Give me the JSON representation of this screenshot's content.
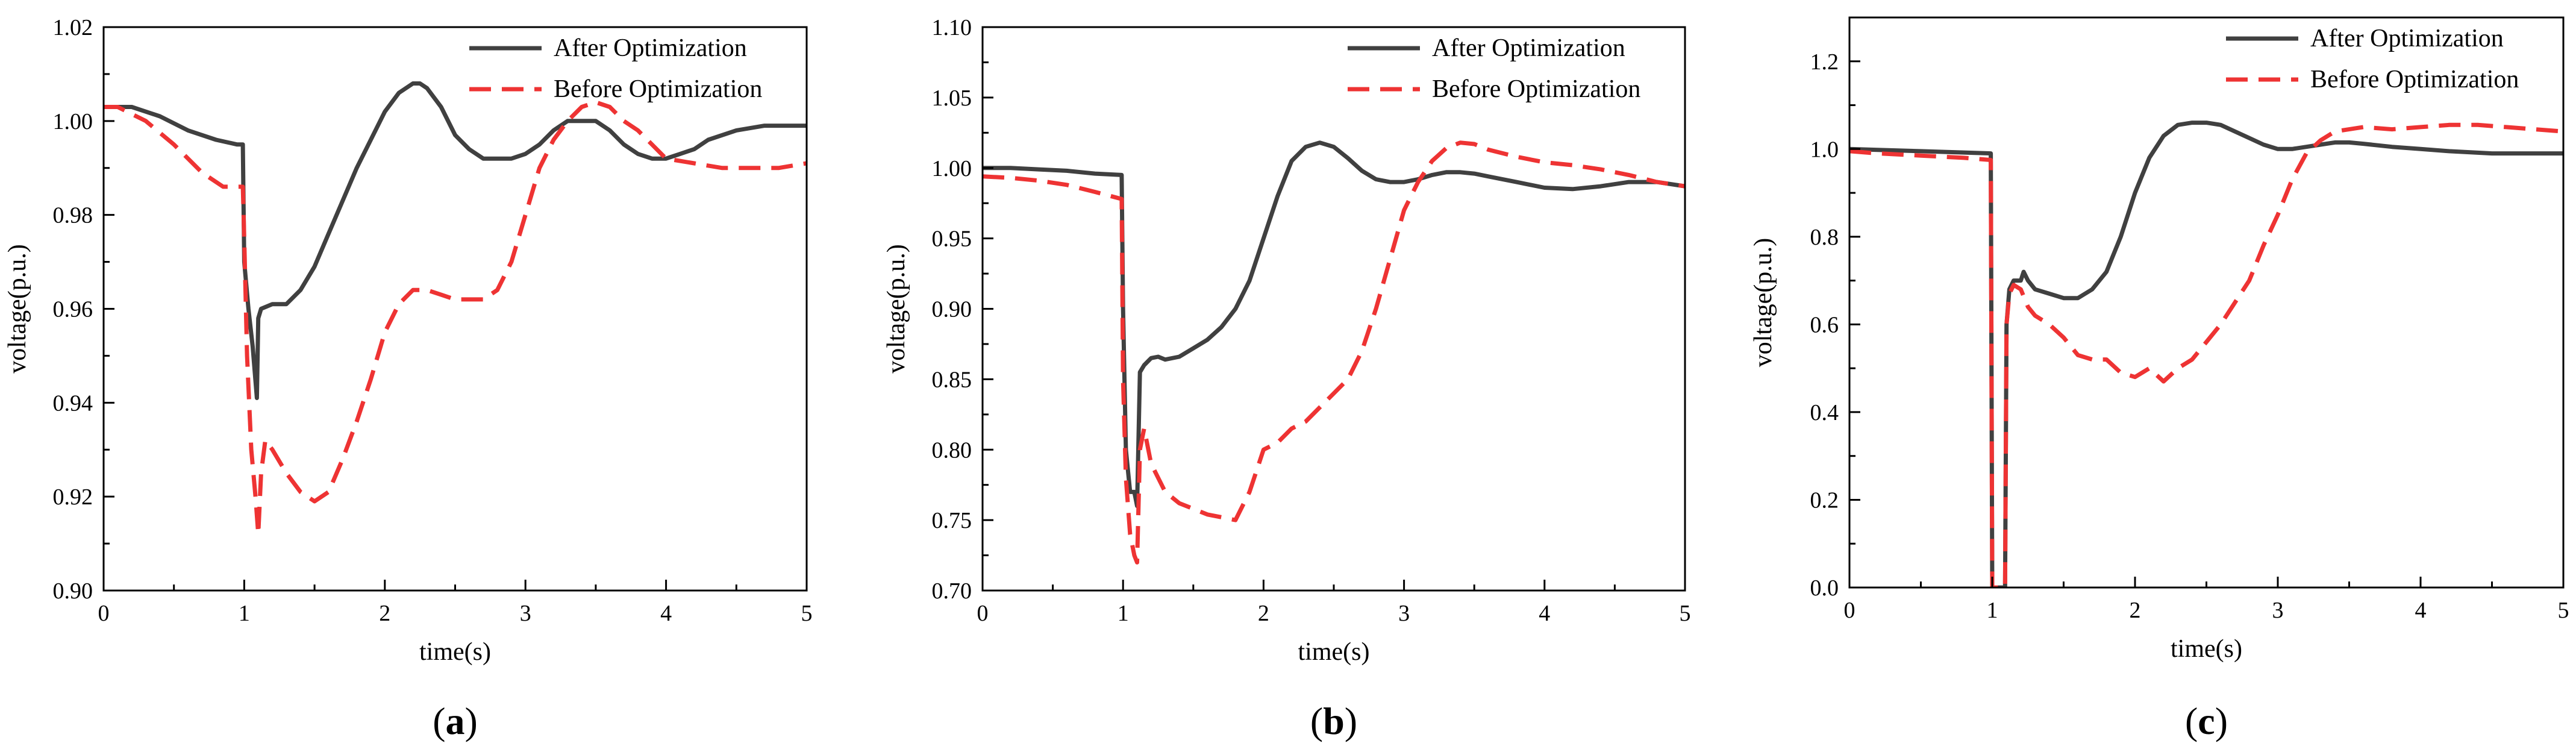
{
  "colors": {
    "after": "#404040",
    "before": "#ee3333",
    "axis": "#000000"
  },
  "chart_data": [
    {
      "type": "line",
      "panel_label": "a",
      "xlabel": "time(s)",
      "ylabel": "voltage(p.u.)",
      "xlim": [
        0,
        5
      ],
      "ylim": [
        0.9,
        1.02
      ],
      "xticks": [
        0,
        1,
        2,
        3,
        4,
        5
      ],
      "xtick_labels": [
        "0",
        "1",
        "2",
        "3",
        "4",
        "5"
      ],
      "yticks": [
        0.9,
        0.92,
        0.94,
        0.96,
        0.98,
        1.0,
        1.02
      ],
      "ytick_labels": [
        "0.90",
        "0.92",
        "0.94",
        "0.96",
        "0.98",
        "1.00",
        "1.02"
      ],
      "grid": false,
      "legend_position": "top-right",
      "series": [
        {
          "name": "After Optimization",
          "style": "solid",
          "x": [
            0,
            0.2,
            0.4,
            0.6,
            0.8,
            0.95,
            0.99,
            1.0,
            1.03,
            1.06,
            1.09,
            1.1,
            1.12,
            1.2,
            1.3,
            1.4,
            1.5,
            1.6,
            1.8,
            2.0,
            2.1,
            2.2,
            2.25,
            2.3,
            2.4,
            2.5,
            2.6,
            2.7,
            2.8,
            2.9,
            3.0,
            3.1,
            3.2,
            3.3,
            3.4,
            3.5,
            3.6,
            3.7,
            3.8,
            3.9,
            4.0,
            4.1,
            4.2,
            4.3,
            4.5,
            4.7,
            4.85,
            5.0
          ],
          "y": [
            1.003,
            1.003,
            1.001,
            0.998,
            0.996,
            0.995,
            0.995,
            0.97,
            0.96,
            0.952,
            0.941,
            0.958,
            0.96,
            0.961,
            0.961,
            0.964,
            0.969,
            0.976,
            0.99,
            1.002,
            1.006,
            1.008,
            1.008,
            1.007,
            1.003,
            0.997,
            0.994,
            0.992,
            0.992,
            0.992,
            0.993,
            0.995,
            0.998,
            1.0,
            1.0,
            1.0,
            0.998,
            0.995,
            0.993,
            0.992,
            0.992,
            0.993,
            0.994,
            0.996,
            0.998,
            0.999,
            0.999,
            0.999
          ]
        },
        {
          "name": "Before Optimization",
          "style": "dashed",
          "x": [
            0,
            0.1,
            0.3,
            0.5,
            0.7,
            0.85,
            0.99,
            1.0,
            1.02,
            1.05,
            1.08,
            1.1,
            1.12,
            1.15,
            1.2,
            1.3,
            1.4,
            1.5,
            1.6,
            1.7,
            1.8,
            1.9,
            2.0,
            2.1,
            2.2,
            2.3,
            2.4,
            2.5,
            2.6,
            2.7,
            2.8,
            2.9,
            3.0,
            3.1,
            3.2,
            3.3,
            3.4,
            3.5,
            3.6,
            3.7,
            3.8,
            3.9,
            4.0,
            4.2,
            4.4,
            4.6,
            4.8,
            5.0
          ],
          "y": [
            1.003,
            1.003,
            1.0,
            0.995,
            0.989,
            0.986,
            0.986,
            0.975,
            0.95,
            0.93,
            0.92,
            0.912,
            0.925,
            0.932,
            0.93,
            0.925,
            0.921,
            0.919,
            0.921,
            0.928,
            0.936,
            0.945,
            0.955,
            0.961,
            0.964,
            0.964,
            0.963,
            0.962,
            0.962,
            0.962,
            0.964,
            0.97,
            0.98,
            0.99,
            0.996,
            1.0,
            1.003,
            1.004,
            1.003,
            1.0,
            0.998,
            0.995,
            0.992,
            0.991,
            0.99,
            0.99,
            0.99,
            0.991
          ]
        }
      ]
    },
    {
      "type": "line",
      "panel_label": "b",
      "xlabel": "time(s)",
      "ylabel": "voltage(p.u.)",
      "xlim": [
        0,
        5
      ],
      "ylim": [
        0.7,
        1.1
      ],
      "xticks": [
        0,
        1,
        2,
        3,
        4,
        5
      ],
      "xtick_labels": [
        "0",
        "1",
        "2",
        "3",
        "4",
        "5"
      ],
      "yticks": [
        0.7,
        0.75,
        0.8,
        0.85,
        0.9,
        0.95,
        1.0,
        1.05,
        1.1
      ],
      "ytick_labels": [
        "0.70",
        "0.75",
        "0.80",
        "0.85",
        "0.90",
        "0.95",
        "1.00",
        "1.05",
        "1.10"
      ],
      "grid": false,
      "legend_position": "top-right",
      "series": [
        {
          "name": "After Optimization",
          "style": "solid",
          "x": [
            0,
            0.2,
            0.4,
            0.6,
            0.8,
            0.99,
            1.0,
            1.02,
            1.05,
            1.08,
            1.1,
            1.12,
            1.15,
            1.2,
            1.25,
            1.3,
            1.4,
            1.5,
            1.6,
            1.7,
            1.8,
            1.9,
            2.0,
            2.1,
            2.2,
            2.3,
            2.4,
            2.5,
            2.6,
            2.7,
            2.8,
            2.9,
            3.0,
            3.1,
            3.2,
            3.3,
            3.4,
            3.5,
            3.6,
            3.8,
            4.0,
            4.2,
            4.4,
            4.6,
            4.8,
            5.0
          ],
          "y": [
            1.0,
            1.0,
            0.999,
            0.998,
            0.996,
            0.995,
            0.9,
            0.8,
            0.77,
            0.77,
            0.76,
            0.855,
            0.86,
            0.865,
            0.866,
            0.864,
            0.866,
            0.872,
            0.878,
            0.887,
            0.9,
            0.92,
            0.95,
            0.98,
            1.005,
            1.015,
            1.018,
            1.015,
            1.007,
            0.998,
            0.992,
            0.99,
            0.99,
            0.992,
            0.995,
            0.997,
            0.997,
            0.996,
            0.994,
            0.99,
            0.986,
            0.985,
            0.987,
            0.99,
            0.99,
            0.987
          ]
        },
        {
          "name": "Before Optimization",
          "style": "dashed",
          "x": [
            0,
            0.2,
            0.4,
            0.6,
            0.8,
            0.99,
            1.0,
            1.02,
            1.05,
            1.08,
            1.1,
            1.12,
            1.15,
            1.2,
            1.3,
            1.4,
            1.5,
            1.6,
            1.7,
            1.8,
            1.9,
            2.0,
            2.1,
            2.2,
            2.3,
            2.4,
            2.5,
            2.6,
            2.7,
            2.8,
            2.9,
            3.0,
            3.1,
            3.2,
            3.3,
            3.4,
            3.5,
            3.6,
            3.8,
            4.0,
            4.2,
            4.4,
            4.6,
            4.8,
            5.0
          ],
          "y": [
            0.994,
            0.993,
            0.991,
            0.988,
            0.983,
            0.978,
            0.85,
            0.78,
            0.74,
            0.725,
            0.72,
            0.8,
            0.815,
            0.79,
            0.77,
            0.762,
            0.758,
            0.754,
            0.752,
            0.75,
            0.77,
            0.8,
            0.805,
            0.815,
            0.82,
            0.83,
            0.84,
            0.85,
            0.87,
            0.9,
            0.935,
            0.97,
            0.99,
            1.005,
            1.014,
            1.018,
            1.017,
            1.013,
            1.008,
            1.004,
            1.002,
            0.999,
            0.995,
            0.99,
            0.987
          ]
        }
      ]
    },
    {
      "type": "line",
      "panel_label": "c",
      "xlabel": "time(s)",
      "ylabel": "voltage(p.u.)",
      "xlim": [
        0,
        5
      ],
      "ylim": [
        0.0,
        1.3
      ],
      "xticks": [
        0,
        1,
        2,
        3,
        4,
        5
      ],
      "xtick_labels": [
        "0",
        "1",
        "2",
        "3",
        "4",
        "5"
      ],
      "yticks": [
        0.0,
        0.2,
        0.4,
        0.6,
        0.8,
        1.0,
        1.2
      ],
      "ytick_labels": [
        "0.0",
        "0.2",
        "0.4",
        "0.6",
        "0.8",
        "1.0",
        "1.2"
      ],
      "grid": false,
      "legend_position": "top-right",
      "series": [
        {
          "name": "After Optimization",
          "style": "solid",
          "x": [
            0,
            0.2,
            0.5,
            0.8,
            0.99,
            1.0,
            1.09,
            1.1,
            1.12,
            1.15,
            1.2,
            1.22,
            1.25,
            1.3,
            1.4,
            1.5,
            1.6,
            1.7,
            1.8,
            1.9,
            2.0,
            2.1,
            2.2,
            2.3,
            2.4,
            2.5,
            2.6,
            2.7,
            2.8,
            2.9,
            3.0,
            3.1,
            3.2,
            3.3,
            3.4,
            3.5,
            3.6,
            3.8,
            4.0,
            4.2,
            4.5,
            4.8,
            5.0
          ],
          "y": [
            1.0,
            0.998,
            0.995,
            0.992,
            0.99,
            0.0,
            0.0,
            0.6,
            0.68,
            0.7,
            0.7,
            0.72,
            0.7,
            0.68,
            0.67,
            0.66,
            0.66,
            0.68,
            0.72,
            0.8,
            0.9,
            0.98,
            1.03,
            1.055,
            1.06,
            1.06,
            1.055,
            1.04,
            1.025,
            1.01,
            1.0,
            1.0,
            1.005,
            1.01,
            1.015,
            1.015,
            1.012,
            1.005,
            1.0,
            0.995,
            0.99,
            0.99,
            0.99
          ]
        },
        {
          "name": "Before Optimization",
          "style": "dashed",
          "x": [
            0,
            0.2,
            0.5,
            0.8,
            0.99,
            1.0,
            1.09,
            1.1,
            1.12,
            1.15,
            1.2,
            1.25,
            1.3,
            1.4,
            1.5,
            1.6,
            1.7,
            1.8,
            1.9,
            2.0,
            2.1,
            2.2,
            2.3,
            2.4,
            2.5,
            2.6,
            2.7,
            2.8,
            2.9,
            3.0,
            3.1,
            3.2,
            3.3,
            3.4,
            3.6,
            3.8,
            4.0,
            4.2,
            4.4,
            4.6,
            4.8,
            5.0
          ],
          "y": [
            0.995,
            0.99,
            0.985,
            0.98,
            0.975,
            0.0,
            0.0,
            0.6,
            0.67,
            0.69,
            0.68,
            0.64,
            0.62,
            0.6,
            0.57,
            0.53,
            0.52,
            0.52,
            0.49,
            0.48,
            0.5,
            0.47,
            0.5,
            0.52,
            0.56,
            0.6,
            0.65,
            0.7,
            0.78,
            0.85,
            0.93,
            0.99,
            1.02,
            1.04,
            1.05,
            1.045,
            1.05,
            1.055,
            1.055,
            1.05,
            1.045,
            1.04
          ]
        }
      ]
    }
  ]
}
